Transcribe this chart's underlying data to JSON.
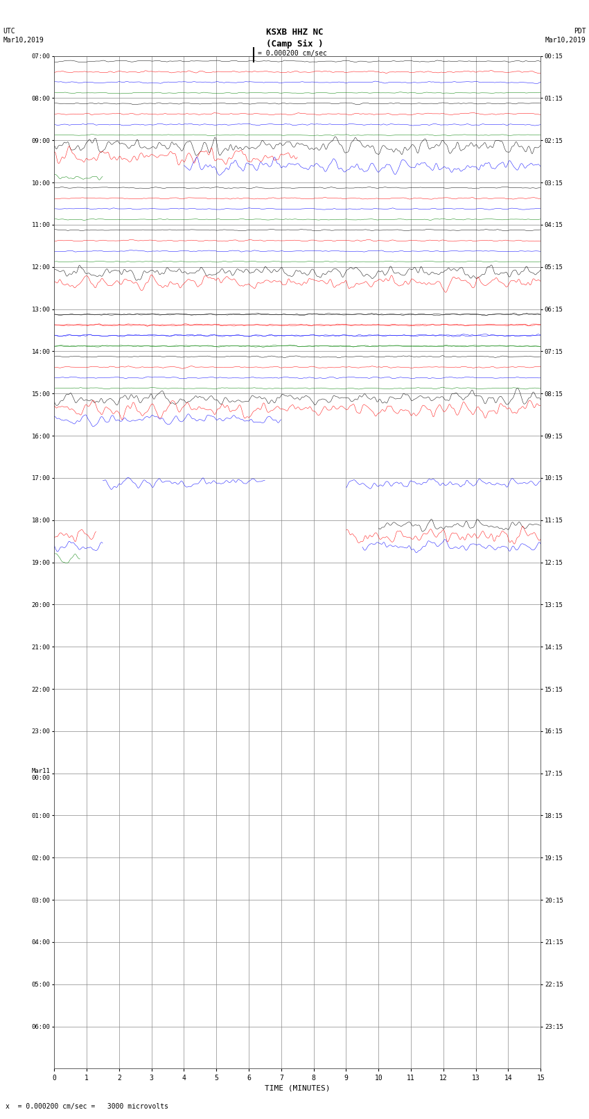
{
  "title_line1": "KSXB HHZ NC",
  "title_line2": "(Camp Six )",
  "scale_text": "= 0.000200 cm/sec",
  "left_label_line1": "UTC",
  "left_label_line2": "Mar10,2019",
  "right_label_line1": "PDT",
  "right_label_line2": "Mar10,2019",
  "bottom_label": "x  = 0.000200 cm/sec =   3000 microvolts",
  "xlabel": "TIME (MINUTES)",
  "left_times": [
    "07:00",
    "08:00",
    "09:00",
    "10:00",
    "11:00",
    "12:00",
    "13:00",
    "14:00",
    "15:00",
    "16:00",
    "17:00",
    "18:00",
    "19:00",
    "20:00",
    "21:00",
    "22:00",
    "23:00",
    "Mar11\n00:00",
    "01:00",
    "02:00",
    "03:00",
    "04:00",
    "05:00",
    "06:00"
  ],
  "right_times": [
    "00:15",
    "01:15",
    "02:15",
    "03:15",
    "04:15",
    "05:15",
    "06:15",
    "07:15",
    "08:15",
    "09:15",
    "10:15",
    "11:15",
    "12:15",
    "13:15",
    "14:15",
    "15:15",
    "16:15",
    "17:15",
    "18:15",
    "19:15",
    "20:15",
    "21:15",
    "22:15",
    "23:15"
  ],
  "num_rows": 24,
  "minutes": 15,
  "colors_cycle": [
    "black",
    "red",
    "blue",
    "green"
  ],
  "bg_color": "white",
  "grid_color": "#888888"
}
